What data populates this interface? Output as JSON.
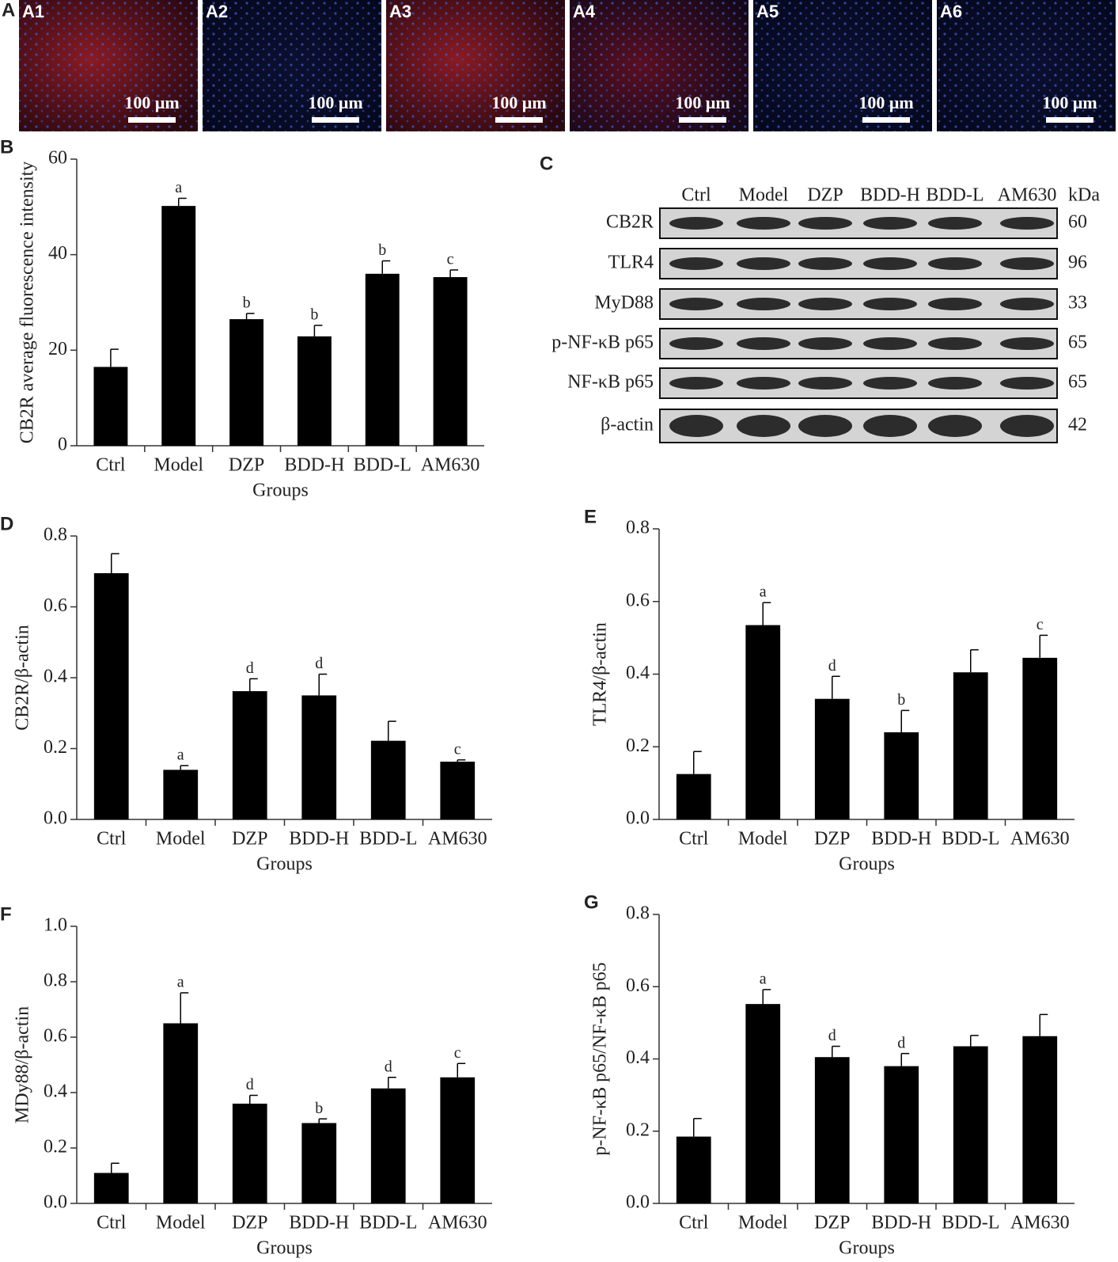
{
  "panel_a": {
    "label": "A",
    "images": [
      {
        "label": "A1",
        "scale_bar": "100 μm"
      },
      {
        "label": "A2",
        "scale_bar": "100 μm"
      },
      {
        "label": "A3",
        "scale_bar": "100 μm"
      },
      {
        "label": "A4",
        "scale_bar": "100 μm"
      },
      {
        "label": "A5",
        "scale_bar": "100 μm"
      },
      {
        "label": "A6",
        "scale_bar": "100 μm"
      }
    ]
  },
  "panel_c": {
    "label": "C",
    "unit": "kDa",
    "columns": [
      "Ctrl",
      "Model",
      "DZP",
      "BDD-H",
      "BDD-L",
      "AM630"
    ],
    "rows": [
      {
        "protein": "CB2R",
        "kda": "60"
      },
      {
        "protein": "TLR4",
        "kda": "96"
      },
      {
        "protein": "MyD88",
        "kda": "33"
      },
      {
        "protein": "p-NF-κB p65",
        "kda": "65"
      },
      {
        "protein": "NF-κB p65",
        "kda": "65"
      },
      {
        "protein": "β-actin",
        "kda": "42"
      }
    ]
  },
  "chart_data": [
    {
      "type": "bar",
      "panel_label": "B",
      "y_label": "CB2R average fluorescence intensity",
      "x_label": "Groups",
      "categories": [
        "Ctrl",
        "Model",
        "DZP",
        "BDD-H",
        "BDD-L",
        "AM630"
      ],
      "values": [
        16.5,
        50.2,
        26.5,
        22.9,
        36.0,
        35.3
      ],
      "errors": [
        3.7,
        1.6,
        1.2,
        2.3,
        2.7,
        1.5
      ],
      "annotations": [
        null,
        "a",
        "b",
        "b",
        "b",
        "c"
      ],
      "color": "#000000",
      "ylim": [
        0,
        60
      ],
      "yticks": [
        0,
        20,
        40,
        60
      ]
    },
    {
      "type": "bar",
      "panel_label": "D",
      "y_label": "CB2R/β-actin",
      "x_label": "Groups",
      "categories": [
        "Ctrl",
        "Model",
        "DZP",
        "BDD-H",
        "BDD-L",
        "AM630"
      ],
      "values": [
        0.695,
        0.14,
        0.362,
        0.35,
        0.222,
        0.163
      ],
      "errors": [
        0.055,
        0.012,
        0.035,
        0.06,
        0.055,
        0.005
      ],
      "annotations": [
        null,
        "a",
        "d",
        "d",
        null,
        "c"
      ],
      "color": "#000000",
      "ylim": [
        0,
        0.8
      ],
      "yticks": [
        {
          "value": 0,
          "label": "0.0"
        },
        0.2,
        0.4,
        0.6,
        0.8
      ]
    },
    {
      "type": "bar",
      "panel_label": "E",
      "y_label": "TLR4/β-actin",
      "x_label": "Groups",
      "categories": [
        "Ctrl",
        "Model",
        "DZP",
        "BDD-H",
        "BDD-L",
        "AM630"
      ],
      "values": [
        0.125,
        0.535,
        0.332,
        0.24,
        0.405,
        0.445
      ],
      "errors": [
        0.062,
        0.062,
        0.062,
        0.06,
        0.062,
        0.062
      ],
      "annotations": [
        null,
        "a",
        "d",
        "b",
        null,
        "c"
      ],
      "color": "#000000",
      "ylim": [
        0,
        0.8
      ],
      "yticks": [
        {
          "value": 0,
          "label": "0.0"
        },
        0.2,
        0.4,
        0.6,
        0.8
      ]
    },
    {
      "type": "bar",
      "panel_label": "F",
      "y_label": "MDy88/β-actin",
      "x_label": "Groups",
      "categories": [
        "Ctrl",
        "Model",
        "DZP",
        "BDD-H",
        "BDD-L",
        "AM630"
      ],
      "values": [
        0.11,
        0.65,
        0.36,
        0.29,
        0.415,
        0.455
      ],
      "errors": [
        0.035,
        0.11,
        0.03,
        0.015,
        0.04,
        0.05
      ],
      "annotations": [
        null,
        "a",
        "d",
        "b",
        "d",
        "c"
      ],
      "color": "#000000",
      "ylim": [
        0,
        1
      ],
      "yticks": [
        {
          "value": 0,
          "label": "0.0"
        },
        0.2,
        0.4,
        0.6,
        0.8,
        {
          "value": 1,
          "label": "1.0"
        }
      ]
    },
    {
      "type": "bar",
      "panel_label": "G",
      "y_label": "p-NF-κB p65/NF-κB p65",
      "x_label": "Groups",
      "categories": [
        "Ctrl",
        "Model",
        "DZP",
        "BDD-H",
        "BDD-L",
        "AM630"
      ],
      "values": [
        0.185,
        0.552,
        0.405,
        0.38,
        0.435,
        0.463
      ],
      "errors": [
        0.05,
        0.04,
        0.03,
        0.035,
        0.03,
        0.06
      ],
      "annotations": [
        null,
        "a",
        "d",
        "d",
        null,
        null
      ],
      "color": "#000000",
      "ylim": [
        0,
        0.8
      ],
      "yticks": [
        {
          "value": 0,
          "label": "0.0"
        },
        0.2,
        0.4,
        0.6,
        0.8
      ]
    }
  ]
}
